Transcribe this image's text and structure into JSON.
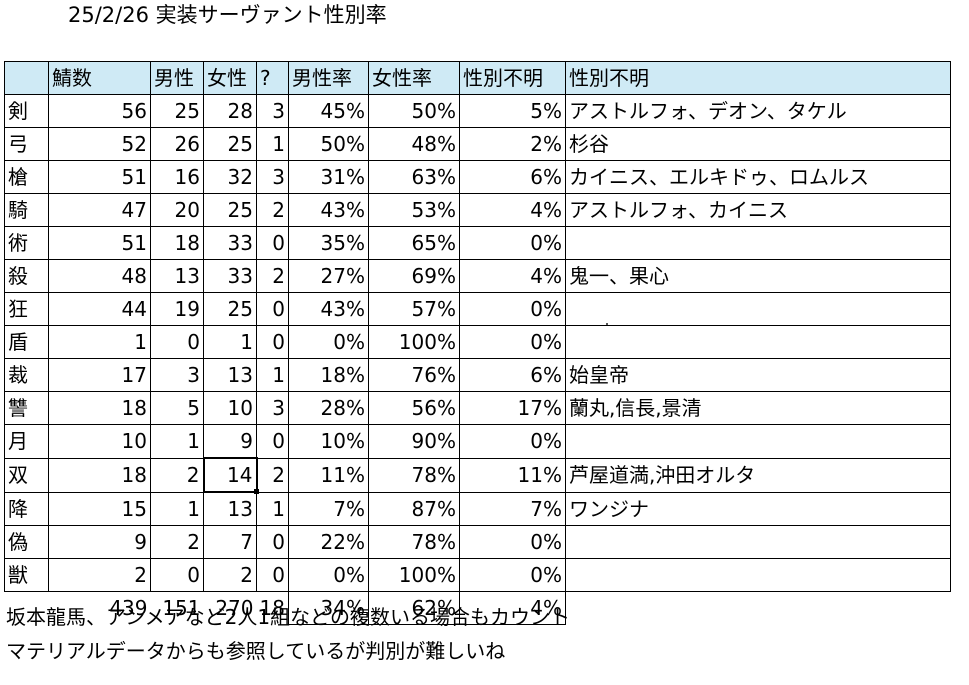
{
  "title": "25/2/26 実装サーヴァント性別率",
  "headers": [
    "",
    "鯖数",
    "男性",
    "女性",
    "?",
    "男性率",
    "女性率",
    "性別不明",
    "性別不明"
  ],
  "rows": [
    {
      "cls": "剣",
      "n": "56",
      "m": "25",
      "f": "28",
      "q": "3",
      "mr": "45%",
      "fr": "50%",
      "ur": "5%",
      "names": "アストルフォ、デオン、タケル"
    },
    {
      "cls": "弓",
      "n": "52",
      "m": "26",
      "f": "25",
      "q": "1",
      "mr": "50%",
      "fr": "48%",
      "ur": "2%",
      "names": "杉谷"
    },
    {
      "cls": "槍",
      "n": "51",
      "m": "16",
      "f": "32",
      "q": "3",
      "mr": "31%",
      "fr": "63%",
      "ur": "6%",
      "names": "カイニス、エルキドゥ、ロムルス"
    },
    {
      "cls": "騎",
      "n": "47",
      "m": "20",
      "f": "25",
      "q": "2",
      "mr": "43%",
      "fr": "53%",
      "ur": "4%",
      "names": "アストルフォ、カイニス"
    },
    {
      "cls": "術",
      "n": "51",
      "m": "18",
      "f": "33",
      "q": "0",
      "mr": "35%",
      "fr": "65%",
      "ur": "0%",
      "names": ""
    },
    {
      "cls": "殺",
      "n": "48",
      "m": "13",
      "f": "33",
      "q": "2",
      "mr": "27%",
      "fr": "69%",
      "ur": "4%",
      "names": "鬼一、果心"
    },
    {
      "cls": "狂",
      "n": "44",
      "m": "19",
      "f": "25",
      "q": "0",
      "mr": "43%",
      "fr": "57%",
      "ur": "0%",
      "names": ""
    },
    {
      "cls": "盾",
      "n": "1",
      "m": "0",
      "f": "1",
      "q": "0",
      "mr": "0%",
      "fr": "100%",
      "ur": "0%",
      "names": ""
    },
    {
      "cls": "裁",
      "n": "17",
      "m": "3",
      "f": "13",
      "q": "1",
      "mr": "18%",
      "fr": "76%",
      "ur": "6%",
      "names": "始皇帝"
    },
    {
      "cls": "讐",
      "n": "18",
      "m": "5",
      "f": "10",
      "q": "3",
      "mr": "28%",
      "fr": "56%",
      "ur": "17%",
      "names": "蘭丸,信長,景清"
    },
    {
      "cls": "月",
      "n": "10",
      "m": "1",
      "f": "9",
      "q": "0",
      "mr": "10%",
      "fr": "90%",
      "ur": "0%",
      "names": ""
    },
    {
      "cls": "双",
      "n": "18",
      "m": "2",
      "f": "14",
      "q": "2",
      "mr": "11%",
      "fr": "78%",
      "ur": "11%",
      "names": "芦屋道満,沖田オルタ"
    },
    {
      "cls": "降",
      "n": "15",
      "m": "1",
      "f": "13",
      "q": "1",
      "mr": "7%",
      "fr": "87%",
      "ur": "7%",
      "names": "ワンジナ"
    },
    {
      "cls": "偽",
      "n": "9",
      "m": "2",
      "f": "7",
      "q": "0",
      "mr": "22%",
      "fr": "78%",
      "ur": "0%",
      "names": ""
    },
    {
      "cls": "獣",
      "n": "2",
      "m": "0",
      "f": "2",
      "q": "0",
      "mr": "0%",
      "fr": "100%",
      "ur": "0%",
      "names": ""
    }
  ],
  "totals": {
    "n": "439",
    "m": "151",
    "f": "270",
    "q": "18",
    "mr": "34%",
    "fr": "62%",
    "ur": "4%"
  },
  "notes": [
    "坂本龍馬、アンメアなど2人1組などの複数いる場合もカウント",
    "マテリアルデータからも参照しているが判別が難しいね"
  ]
}
